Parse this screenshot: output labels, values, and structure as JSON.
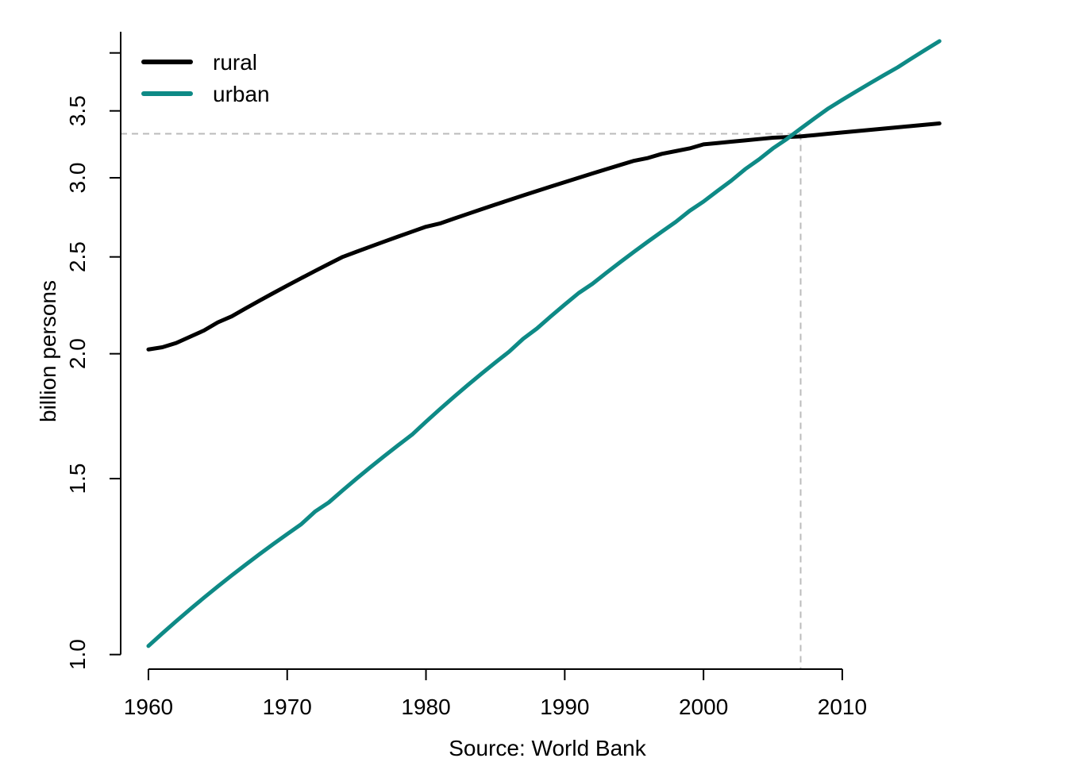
{
  "chart_data": {
    "type": "line",
    "title": "",
    "xlabel": "Source: World Bank",
    "ylabel": "billion persons",
    "y_scale": "log",
    "xlim": [
      1958,
      2019.5
    ],
    "ylim": [
      0.967,
      4.2
    ],
    "x_ticks": [
      1960,
      1970,
      1980,
      1990,
      2000,
      2010
    ],
    "y_ticks": [
      1.0,
      1.5,
      2.0,
      2.5,
      3.0,
      3.5
    ],
    "y_tick_labels": [
      "1.0",
      "1.5",
      "2.0",
      "2.5",
      "3.0",
      "3.5"
    ],
    "legend_position": "top-left",
    "grid": false,
    "x": [
      1960,
      1961,
      1962,
      1963,
      1964,
      1965,
      1966,
      1967,
      1968,
      1969,
      1970,
      1971,
      1972,
      1973,
      1974,
      1975,
      1976,
      1977,
      1978,
      1979,
      1980,
      1981,
      1982,
      1983,
      1984,
      1985,
      1986,
      1987,
      1988,
      1989,
      1990,
      1991,
      1992,
      1993,
      1994,
      1995,
      1996,
      1997,
      1998,
      1999,
      2000,
      2001,
      2002,
      2003,
      2004,
      2005,
      2006,
      2007,
      2008,
      2009,
      2010,
      2011,
      2012,
      2013,
      2014,
      2015,
      2016,
      2017
    ],
    "series": [
      {
        "name": "rural",
        "color": "#000000",
        "values": [
          2.02,
          2.03,
          2.05,
          2.08,
          2.11,
          2.15,
          2.18,
          2.22,
          2.26,
          2.3,
          2.34,
          2.38,
          2.42,
          2.46,
          2.5,
          2.53,
          2.56,
          2.59,
          2.62,
          2.65,
          2.68,
          2.7,
          2.73,
          2.76,
          2.79,
          2.82,
          2.85,
          2.88,
          2.91,
          2.94,
          2.97,
          3.0,
          3.03,
          3.06,
          3.09,
          3.12,
          3.14,
          3.17,
          3.19,
          3.21,
          3.24,
          3.25,
          3.26,
          3.27,
          3.28,
          3.29,
          3.295,
          3.3,
          3.31,
          3.32,
          3.33,
          3.34,
          3.35,
          3.36,
          3.37,
          3.38,
          3.39,
          3.4
        ]
      },
      {
        "name": "urban",
        "color": "#0e8a86",
        "values": [
          1.02,
          1.05,
          1.08,
          1.11,
          1.14,
          1.17,
          1.2,
          1.23,
          1.26,
          1.29,
          1.32,
          1.35,
          1.39,
          1.42,
          1.46,
          1.5,
          1.54,
          1.58,
          1.62,
          1.66,
          1.71,
          1.76,
          1.81,
          1.86,
          1.91,
          1.96,
          2.01,
          2.07,
          2.12,
          2.18,
          2.24,
          2.3,
          2.35,
          2.41,
          2.47,
          2.53,
          2.59,
          2.65,
          2.71,
          2.78,
          2.84,
          2.91,
          2.98,
          3.06,
          3.13,
          3.21,
          3.28,
          3.36,
          3.44,
          3.52,
          3.59,
          3.66,
          3.73,
          3.8,
          3.87,
          3.95,
          4.03,
          4.11
        ]
      }
    ],
    "reference_lines": {
      "crossover_year": 2007,
      "crossover_value": 3.32,
      "color": "#bbbbbb",
      "style": "dashed"
    }
  }
}
